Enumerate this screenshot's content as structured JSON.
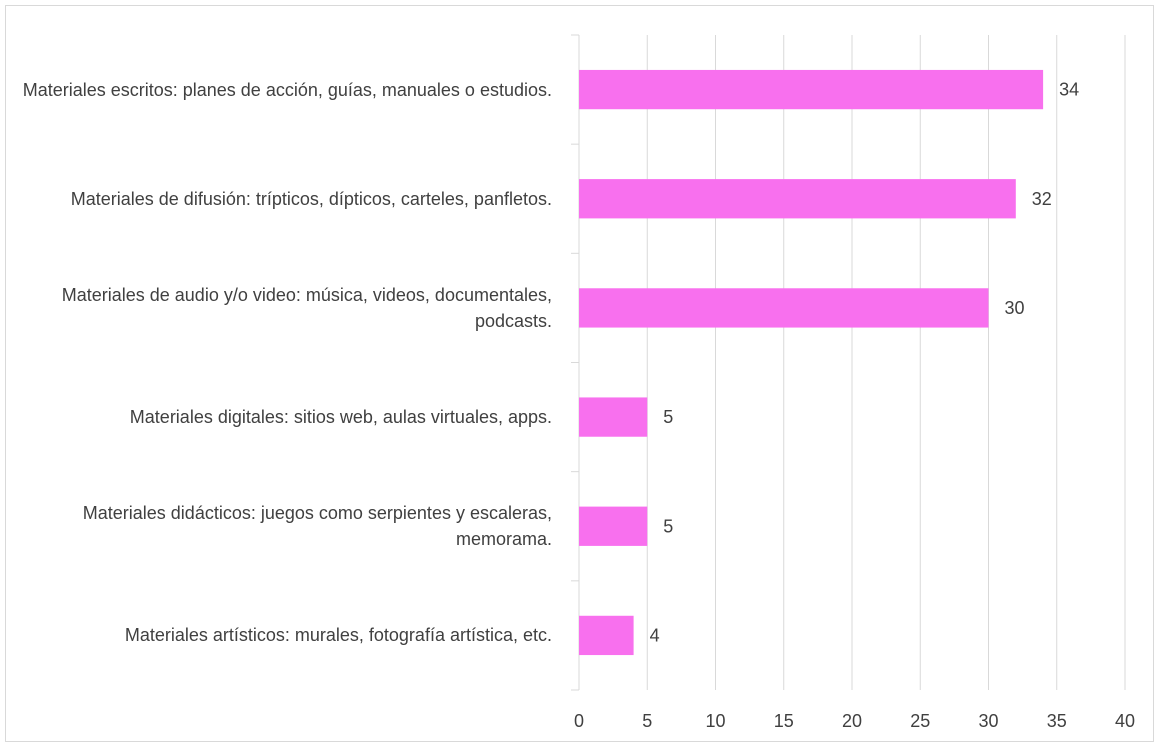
{
  "chart_data": {
    "type": "bar",
    "orientation": "horizontal",
    "categories": [
      "Materiales escritos: planes de acción, guías, manuales o estudios.",
      "Materiales de difusión: trípticos, dípticos, carteles, panfletos.",
      "Materiales de audio y/o video: música, videos, documentales, podcasts.",
      "Materiales digitales: sitios web, aulas virtuales, apps.",
      "Materiales didácticos: juegos como serpientes y escaleras, memorama.",
      "Materiales artísticos: murales, fotografía artística, etc."
    ],
    "values": [
      34,
      32,
      30,
      5,
      5,
      4
    ],
    "data_labels": [
      "34",
      "32",
      "30",
      "5",
      "5",
      "4"
    ],
    "xlim": [
      0,
      40
    ],
    "xticks": [
      "0",
      "5",
      "10",
      "15",
      "20",
      "25",
      "30",
      "35",
      "40"
    ],
    "title": "",
    "xlabel": "",
    "ylabel": "",
    "grid": "vertical",
    "legend": "none",
    "bar_color": "#f870ee",
    "grid_color": "#d9d9d9",
    "text_color": "#404040"
  }
}
